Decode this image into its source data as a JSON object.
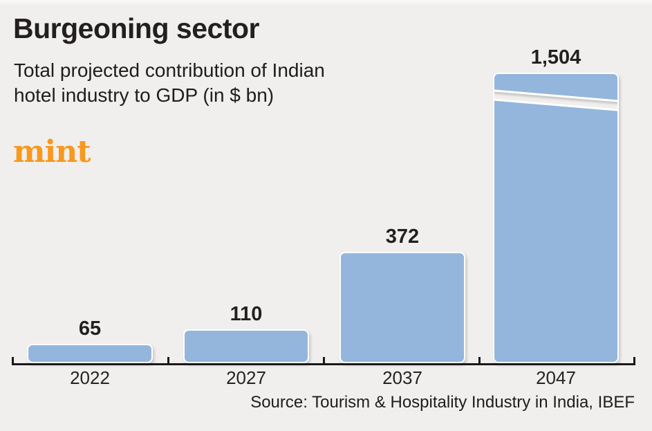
{
  "header": {
    "title": "Burgeoning sector",
    "subtitle_line1": "Total projected contribution of Indian",
    "subtitle_line2": "hotel industry to GDP (in $ bn)",
    "brand": "mint"
  },
  "chart_data": {
    "type": "bar",
    "title": "Burgeoning sector",
    "subtitle": "Total projected contribution of Indian hotel industry to GDP (in $ bn)",
    "unit": "$ bn",
    "categories": [
      "2022",
      "2027",
      "2037",
      "2047"
    ],
    "values": [
      65,
      110,
      372,
      1504
    ],
    "value_labels": {
      "v0": "65",
      "v1": "110",
      "v2": "372",
      "v3": "1,504"
    },
    "category_labels": {
      "c0": "2022",
      "c1": "2027",
      "c2": "2037",
      "c3": "2047"
    },
    "bar_color": "#94b6dc",
    "background_color": "#f0efed",
    "broken_bar_category": "2047",
    "legend": "none",
    "grid": "off",
    "source": "Source: Tourism & Hospitality Industry in India, IBEF"
  },
  "footer": {
    "source": "Source: Tourism & Hospitality Industry in India, IBEF"
  },
  "colors": {
    "brand_orange": "#f8981d",
    "bar_blue": "#94b6dc",
    "text_dark": "#231f20",
    "background": "#f0efed",
    "axis": "#191919"
  }
}
